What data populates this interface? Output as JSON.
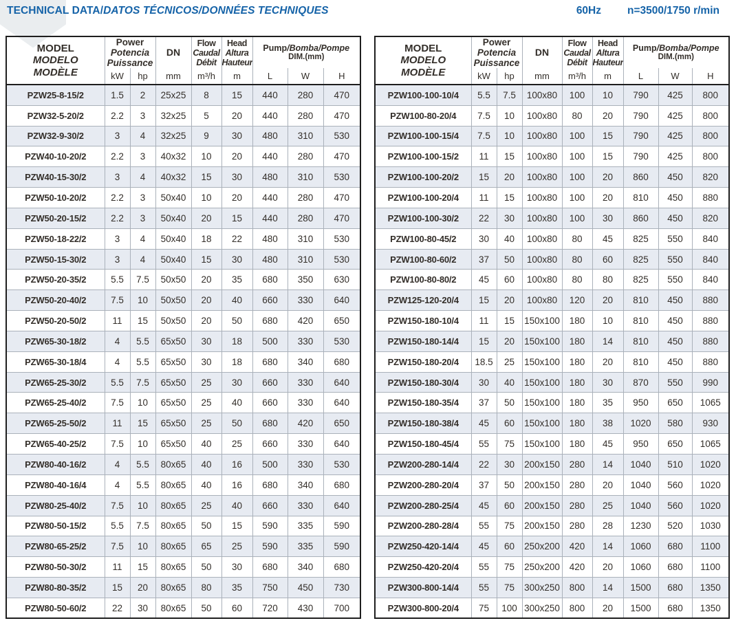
{
  "page": {
    "title_part1": "TECHNICAL DATA/",
    "title_part2": "DATOS TÉCNICOS/DONNÉES TECHNIQUES",
    "frequency": "60Hz",
    "speed": "n=3500/1750 r/min"
  },
  "colors": {
    "accent_blue": "#1563a8",
    "stripe": "#e7ebf2",
    "grid_gray": "#aab1ba",
    "border_dark": "#1e1e1e",
    "text": "#332e29"
  },
  "header": {
    "model_lines": [
      "MODEL",
      "MODELO",
      "MODÈLE"
    ],
    "power_lines": [
      "Power",
      "Potencia",
      "Puissance"
    ],
    "dn_label": "DN",
    "flow_lines": [
      "Flow",
      "Caudal",
      "Débit"
    ],
    "head_lines": [
      "Head",
      "Altura",
      "Hauteur"
    ],
    "pump_main": "Pump",
    "pump_rest": "/Bomba/Pompe",
    "pump_dim": "DIM.(mm)",
    "units": {
      "kw": "kW",
      "hp": "hp",
      "mm": "mm",
      "m3h": "m³/h",
      "m": "m",
      "l": "L",
      "w": "W",
      "h": "H"
    }
  },
  "tables": {
    "left": {
      "rows": [
        [
          "PZW25-8-15/2",
          "1.5",
          "2",
          "25x25",
          "8",
          "15",
          "440",
          "280",
          "470"
        ],
        [
          "PZW32-5-20/2",
          "2.2",
          "3",
          "32x25",
          "5",
          "20",
          "440",
          "280",
          "470"
        ],
        [
          "PZW32-9-30/2",
          "3",
          "4",
          "32x25",
          "9",
          "30",
          "480",
          "310",
          "530"
        ],
        [
          "PZW40-10-20/2",
          "2.2",
          "3",
          "40x32",
          "10",
          "20",
          "440",
          "280",
          "470"
        ],
        [
          "PZW40-15-30/2",
          "3",
          "4",
          "40x32",
          "15",
          "30",
          "480",
          "310",
          "530"
        ],
        [
          "PZW50-10-20/2",
          "2.2",
          "3",
          "50x40",
          "10",
          "20",
          "440",
          "280",
          "470"
        ],
        [
          "PZW50-20-15/2",
          "2.2",
          "3",
          "50x40",
          "20",
          "15",
          "440",
          "280",
          "470"
        ],
        [
          "PZW50-18-22/2",
          "3",
          "4",
          "50x40",
          "18",
          "22",
          "480",
          "310",
          "530"
        ],
        [
          "PZW50-15-30/2",
          "3",
          "4",
          "50x40",
          "15",
          "30",
          "480",
          "310",
          "530"
        ],
        [
          "PZW50-20-35/2",
          "5.5",
          "7.5",
          "50x50",
          "20",
          "35",
          "680",
          "350",
          "630"
        ],
        [
          "PZW50-20-40/2",
          "7.5",
          "10",
          "50x50",
          "20",
          "40",
          "660",
          "330",
          "640"
        ],
        [
          "PZW50-20-50/2",
          "11",
          "15",
          "50x50",
          "20",
          "50",
          "680",
          "420",
          "650"
        ],
        [
          "PZW65-30-18/2",
          "4",
          "5.5",
          "65x50",
          "30",
          "18",
          "500",
          "330",
          "530"
        ],
        [
          "PZW65-30-18/4",
          "4",
          "5.5",
          "65x50",
          "30",
          "18",
          "680",
          "340",
          "680"
        ],
        [
          "PZW65-25-30/2",
          "5.5",
          "7.5",
          "65x50",
          "25",
          "30",
          "660",
          "330",
          "640"
        ],
        [
          "PZW65-25-40/2",
          "7.5",
          "10",
          "65x50",
          "25",
          "40",
          "660",
          "330",
          "640"
        ],
        [
          "PZW65-25-50/2",
          "11",
          "15",
          "65x50",
          "25",
          "50",
          "680",
          "420",
          "650"
        ],
        [
          "PZW65-40-25/2",
          "7.5",
          "10",
          "65x50",
          "40",
          "25",
          "660",
          "330",
          "640"
        ],
        [
          "PZW80-40-16/2",
          "4",
          "5.5",
          "80x65",
          "40",
          "16",
          "500",
          "330",
          "530"
        ],
        [
          "PZW80-40-16/4",
          "4",
          "5.5",
          "80x65",
          "40",
          "16",
          "680",
          "340",
          "680"
        ],
        [
          "PZW80-25-40/2",
          "7.5",
          "10",
          "80x65",
          "25",
          "40",
          "660",
          "330",
          "640"
        ],
        [
          "PZW80-50-15/2",
          "5.5",
          "7.5",
          "80x65",
          "50",
          "15",
          "590",
          "335",
          "590"
        ],
        [
          "PZW80-65-25/2",
          "7.5",
          "10",
          "80x65",
          "65",
          "25",
          "590",
          "335",
          "590"
        ],
        [
          "PZW80-50-30/2",
          "11",
          "15",
          "80x65",
          "50",
          "30",
          "680",
          "340",
          "680"
        ],
        [
          "PZW80-80-35/2",
          "15",
          "20",
          "80x65",
          "80",
          "35",
          "750",
          "450",
          "730"
        ],
        [
          "PZW80-50-60/2",
          "22",
          "30",
          "80x65",
          "50",
          "60",
          "720",
          "430",
          "700"
        ]
      ]
    },
    "right": {
      "rows": [
        [
          "PZW100-100-10/4",
          "5.5",
          "7.5",
          "100x80",
          "100",
          "10",
          "790",
          "425",
          "800"
        ],
        [
          "PZW100-80-20/4",
          "7.5",
          "10",
          "100x80",
          "80",
          "20",
          "790",
          "425",
          "800"
        ],
        [
          "PZW100-100-15/4",
          "7.5",
          "10",
          "100x80",
          "100",
          "15",
          "790",
          "425",
          "800"
        ],
        [
          "PZW100-100-15/2",
          "11",
          "15",
          "100x80",
          "100",
          "15",
          "790",
          "425",
          "800"
        ],
        [
          "PZW100-100-20/2",
          "15",
          "20",
          "100x80",
          "100",
          "20",
          "860",
          "450",
          "820"
        ],
        [
          "PZW100-100-20/4",
          "11",
          "15",
          "100x80",
          "100",
          "20",
          "810",
          "450",
          "880"
        ],
        [
          "PZW100-100-30/2",
          "22",
          "30",
          "100x80",
          "100",
          "30",
          "860",
          "450",
          "820"
        ],
        [
          "PZW100-80-45/2",
          "30",
          "40",
          "100x80",
          "80",
          "45",
          "825",
          "550",
          "840"
        ],
        [
          "PZW100-80-60/2",
          "37",
          "50",
          "100x80",
          "80",
          "60",
          "825",
          "550",
          "840"
        ],
        [
          "PZW100-80-80/2",
          "45",
          "60",
          "100x80",
          "80",
          "80",
          "825",
          "550",
          "840"
        ],
        [
          "PZW125-120-20/4",
          "15",
          "20",
          "100x80",
          "120",
          "20",
          "810",
          "450",
          "880"
        ],
        [
          "PZW150-180-10/4",
          "11",
          "15",
          "150x100",
          "180",
          "10",
          "810",
          "450",
          "880"
        ],
        [
          "PZW150-180-14/4",
          "15",
          "20",
          "150x100",
          "180",
          "14",
          "810",
          "450",
          "880"
        ],
        [
          "PZW150-180-20/4",
          "18.5",
          "25",
          "150x100",
          "180",
          "20",
          "810",
          "450",
          "880"
        ],
        [
          "PZW150-180-30/4",
          "30",
          "40",
          "150x100",
          "180",
          "30",
          "870",
          "550",
          "990"
        ],
        [
          "PZW150-180-35/4",
          "37",
          "50",
          "150x100",
          "180",
          "35",
          "950",
          "650",
          "1065"
        ],
        [
          "PZW150-180-38/4",
          "45",
          "60",
          "150x100",
          "180",
          "38",
          "1020",
          "580",
          "930"
        ],
        [
          "PZW150-180-45/4",
          "55",
          "75",
          "150x100",
          "180",
          "45",
          "950",
          "650",
          "1065"
        ],
        [
          "PZW200-280-14/4",
          "22",
          "30",
          "200x150",
          "280",
          "14",
          "1040",
          "510",
          "1020"
        ],
        [
          "PZW200-280-20/4",
          "37",
          "50",
          "200x150",
          "280",
          "20",
          "1040",
          "560",
          "1020"
        ],
        [
          "PZW200-280-25/4",
          "45",
          "60",
          "200x150",
          "280",
          "25",
          "1040",
          "560",
          "1020"
        ],
        [
          "PZW200-280-28/4",
          "55",
          "75",
          "200x150",
          "280",
          "28",
          "1230",
          "520",
          "1030"
        ],
        [
          "PZW250-420-14/4",
          "45",
          "60",
          "250x200",
          "420",
          "14",
          "1060",
          "680",
          "1100"
        ],
        [
          "PZW250-420-20/4",
          "55",
          "75",
          "250x200",
          "420",
          "20",
          "1060",
          "680",
          "1100"
        ],
        [
          "PZW300-800-14/4",
          "55",
          "75",
          "300x250",
          "800",
          "14",
          "1500",
          "680",
          "1350"
        ],
        [
          "PZW300-800-20/4",
          "75",
          "100",
          "300x250",
          "800",
          "20",
          "1500",
          "680",
          "1350"
        ]
      ]
    }
  }
}
